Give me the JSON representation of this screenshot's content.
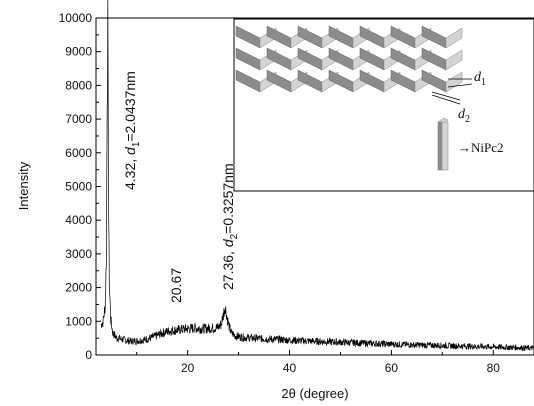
{
  "chart_data": {
    "type": "line",
    "title": "",
    "xlabel": "2θ  (degree)",
    "ylabel": "Intensity",
    "xlim": [
      2,
      88
    ],
    "ylim": [
      0,
      10000
    ],
    "x_ticks": [
      20,
      40,
      60,
      80
    ],
    "y_ticks": [
      0,
      1000,
      2000,
      3000,
      4000,
      5000,
      6000,
      7000,
      8000,
      9000,
      10000
    ],
    "grid": false,
    "series": [
      {
        "x": [
          3.0,
          3.4,
          3.8,
          4.05,
          4.2,
          4.32,
          4.45,
          4.6,
          4.9,
          5.3,
          6,
          7,
          8,
          9,
          10,
          11,
          12,
          13,
          14,
          15,
          16,
          17,
          18,
          19,
          20,
          20.67,
          21.5,
          22,
          23,
          24,
          25,
          26,
          26.6,
          27.0,
          27.36,
          27.7,
          28.1,
          28.6,
          29.5,
          31,
          33,
          35,
          38,
          40,
          43,
          46,
          50,
          55,
          60,
          65,
          70,
          75,
          80,
          85,
          88
        ],
        "y": [
          900,
          1000,
          1450,
          3000,
          8000,
          9600,
          5000,
          2200,
          1050,
          650,
          520,
          470,
          430,
          410,
          420,
          440,
          470,
          520,
          580,
          650,
          700,
          730,
          740,
          760,
          780,
          790,
          800,
          790,
          780,
          790,
          800,
          820,
          920,
          1200,
          1450,
          1150,
          850,
          650,
          560,
          520,
          500,
          480,
          460,
          440,
          420,
          400,
          380,
          350,
          320,
          300,
          280,
          260,
          240,
          220,
          200
        ]
      }
    ],
    "annotations": {
      "peak1": {
        "x": 4.32,
        "text_value": "4.32,",
        "d_symbol": "d",
        "d_sub": "1",
        "d_value": "=2.0437nm"
      },
      "peak2": {
        "x": 20.67,
        "text": "20.67"
      },
      "peak3": {
        "x": 27.36,
        "text_value": "27.36,",
        "d_symbol": "d",
        "d_sub": "2",
        "d_value": "=0.3257nm"
      }
    },
    "inset": {
      "label_d1": "d",
      "label_d1_sub": "1",
      "label_d2": "d",
      "label_d2_sub": "2",
      "legend": "→NiPc2"
    },
    "colors": {
      "line": "#000000",
      "inset_dark": "#8c8c8c",
      "inset_light": "#d4d4d4"
    }
  }
}
